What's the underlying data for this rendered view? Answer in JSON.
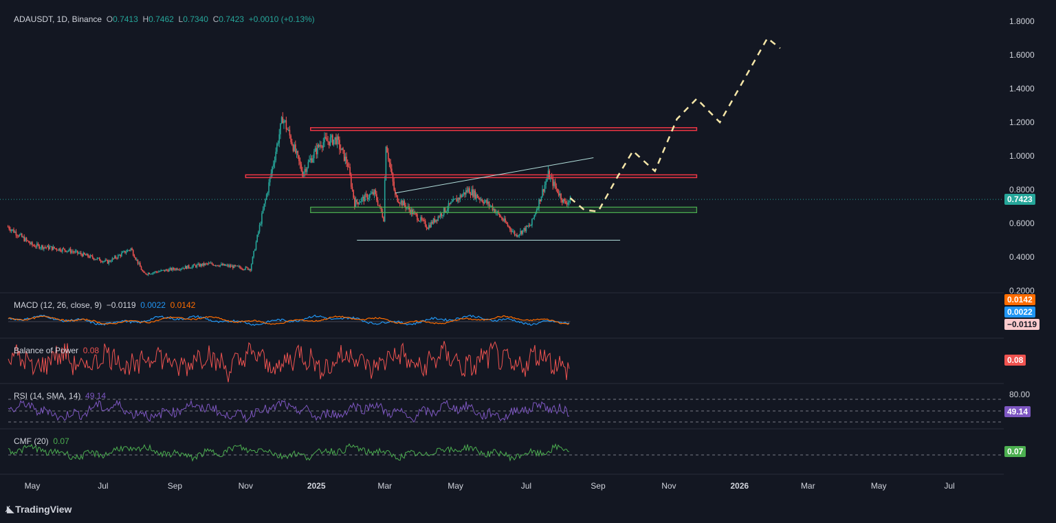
{
  "header": {
    "symbol": "ADAUSDT, 1D, Binance",
    "o_label": "O",
    "o": "0.7413",
    "h_label": "H",
    "h": "0.7462",
    "l_label": "L",
    "l": "0.7340",
    "c_label": "C",
    "c": "0.7423",
    "change": "+0.0010 (+0.13%)"
  },
  "indicators": {
    "macd": {
      "label": "MACD (12, 26, close, 9)",
      "hist": "−0.0119",
      "macd": "0.0022",
      "signal": "0.0142",
      "tag_signal": "0.0142",
      "tag_macd": "0.0022",
      "tag_hist": "−0.0119"
    },
    "bop": {
      "label": "Balance of Power",
      "value": "0.08",
      "tag": "0.08"
    },
    "rsi": {
      "label": "RSI (14, SMA, 14)",
      "value": "49.14",
      "tag": "49.14",
      "level": "80.00"
    },
    "cmf": {
      "label": "CMF (20)",
      "value": "0.07",
      "tag": "0.07"
    }
  },
  "price_tag": "0.7423",
  "brand": "TradingView",
  "colors": {
    "up": "#26a69a",
    "down": "#ef5350",
    "bg": "#131722",
    "resistance": "#f23645",
    "support": "#4caf50",
    "projection": "#f5e6a8",
    "macd": "#2196f3",
    "signal": "#ff6d00",
    "rsi": "#7e57c2",
    "cmf": "#4caf50"
  },
  "chart_data": {
    "type": "candlestick",
    "title": "ADAUSDT, 1D, Binance",
    "y_ticks": [
      "1.8000",
      "1.6000",
      "1.4000",
      "1.2000",
      "1.0000",
      "0.8000",
      "0.6000",
      "0.4000",
      "0.2000"
    ],
    "ylim": [
      0.2,
      1.8
    ],
    "x_ticks": [
      "May",
      "Jul",
      "Sep",
      "Nov",
      "2025",
      "Mar",
      "May",
      "Jul",
      "Sep",
      "Nov",
      "2026",
      "Mar",
      "May",
      "Jul"
    ],
    "x_tick_dates": [
      "2024-05-01",
      "2024-07-01",
      "2024-09-01",
      "2024-11-01",
      "2025-01-01",
      "2025-03-01",
      "2025-05-01",
      "2025-07-01",
      "2025-09-01",
      "2025-11-01",
      "2026-01-01",
      "2026-03-01",
      "2026-05-01",
      "2026-07-01"
    ],
    "close_path": [
      {
        "x": "2024-04-10",
        "y": 0.58
      },
      {
        "x": "2024-05-01",
        "y": 0.47
      },
      {
        "x": "2024-06-01",
        "y": 0.44
      },
      {
        "x": "2024-07-05",
        "y": 0.37
      },
      {
        "x": "2024-07-25",
        "y": 0.45
      },
      {
        "x": "2024-08-05",
        "y": 0.3
      },
      {
        "x": "2024-09-01",
        "y": 0.33
      },
      {
        "x": "2024-10-01",
        "y": 0.36
      },
      {
        "x": "2024-11-05",
        "y": 0.33
      },
      {
        "x": "2024-11-12",
        "y": 0.55
      },
      {
        "x": "2024-11-20",
        "y": 0.8
      },
      {
        "x": "2024-12-03",
        "y": 1.23
      },
      {
        "x": "2024-12-10",
        "y": 1.1
      },
      {
        "x": "2024-12-20",
        "y": 0.9
      },
      {
        "x": "2025-01-05",
        "y": 1.08
      },
      {
        "x": "2025-01-18",
        "y": 1.1
      },
      {
        "x": "2025-01-28",
        "y": 0.95
      },
      {
        "x": "2025-02-03",
        "y": 0.72
      },
      {
        "x": "2025-02-20",
        "y": 0.78
      },
      {
        "x": "2025-02-28",
        "y": 0.63
      },
      {
        "x": "2025-03-02",
        "y": 1.08
      },
      {
        "x": "2025-03-10",
        "y": 0.76
      },
      {
        "x": "2025-04-07",
        "y": 0.58
      },
      {
        "x": "2025-04-25",
        "y": 0.7
      },
      {
        "x": "2025-05-12",
        "y": 0.8
      },
      {
        "x": "2025-06-01",
        "y": 0.7
      },
      {
        "x": "2025-06-22",
        "y": 0.53
      },
      {
        "x": "2025-07-05",
        "y": 0.59
      },
      {
        "x": "2025-07-20",
        "y": 0.89
      },
      {
        "x": "2025-08-03",
        "y": 0.72
      },
      {
        "x": "2025-08-08",
        "y": 0.74
      }
    ],
    "levels": [
      {
        "kind": "resistance",
        "y": 1.16,
        "x_from": "2024-12-27",
        "x_to": "2025-11-25"
      },
      {
        "kind": "resistance",
        "y": 0.88,
        "x_from": "2024-11-01",
        "x_to": "2025-11-25"
      },
      {
        "kind": "support",
        "y": 0.68,
        "x_from": "2024-12-27",
        "x_to": "2025-11-25"
      },
      {
        "kind": "trendline",
        "from": {
          "x": "2025-03-10",
          "y": 0.78
        },
        "to": {
          "x": "2025-08-28",
          "y": 0.99
        }
      },
      {
        "kind": "trendline",
        "from": {
          "x": "2025-02-05",
          "y": 0.5
        },
        "to": {
          "x": "2025-09-20",
          "y": 0.5
        }
      }
    ],
    "projection": [
      {
        "x": "2025-08-08",
        "y": 0.75
      },
      {
        "x": "2025-08-20",
        "y": 0.68
      },
      {
        "x": "2025-09-01",
        "y": 0.67
      },
      {
        "x": "2025-09-18",
        "y": 0.88
      },
      {
        "x": "2025-10-01",
        "y": 1.03
      },
      {
        "x": "2025-10-20",
        "y": 0.91
      },
      {
        "x": "2025-11-08",
        "y": 1.22
      },
      {
        "x": "2025-11-25",
        "y": 1.34
      },
      {
        "x": "2025-12-15",
        "y": 1.2
      },
      {
        "x": "2026-01-25",
        "y": 1.7
      },
      {
        "x": "2026-02-05",
        "y": 1.64
      }
    ]
  }
}
